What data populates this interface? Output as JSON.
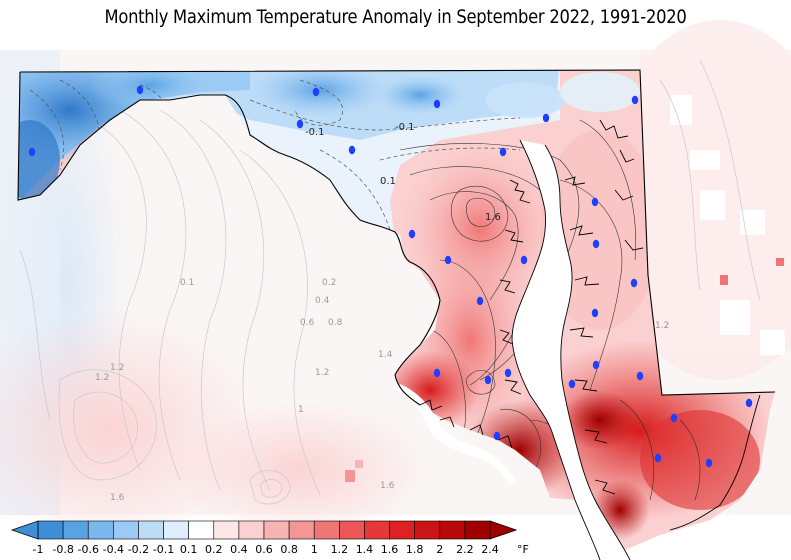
{
  "title": "Monthly Maximum Temperature Anomaly in September 2022, 1991-2020",
  "colorbar": {
    "unit": "°F",
    "ticks": [
      "-1",
      "-0.8",
      "-0.6",
      "-0.4",
      "-0.2",
      "-0.1",
      "0.1",
      "0.2",
      "0.4",
      "0.6",
      "0.8",
      "1",
      "1.2",
      "1.4",
      "1.6",
      "1.8",
      "2",
      "2.2",
      "2.4"
    ],
    "colors": [
      "#3f8fd6",
      "#5aa3e3",
      "#79b8ee",
      "#9bcaf4",
      "#bddcf8",
      "#ddedfb",
      "#ffffff",
      "#fde6e6",
      "#fbd0d0",
      "#f8b4b4",
      "#f59696",
      "#f07676",
      "#ec5656",
      "#e63838",
      "#de2222",
      "#cc1414",
      "#b80808",
      "#a00000"
    ],
    "end_colors": {
      "low": "#3f8fd6",
      "high": "#a00000"
    }
  },
  "contour_labels": [
    {
      "text": "-0.1",
      "kind": "dark"
    },
    {
      "text": "0.1",
      "kind": "dark"
    },
    {
      "text": "-0.1",
      "kind": "dark"
    },
    {
      "text": "1.6",
      "kind": "dark"
    },
    {
      "text": "0.1",
      "kind": "grey"
    },
    {
      "text": "0.2",
      "kind": "grey"
    },
    {
      "text": "0.4",
      "kind": "grey"
    },
    {
      "text": "0.6",
      "kind": "grey"
    },
    {
      "text": "0.8",
      "kind": "grey"
    },
    {
      "text": "1.4",
      "kind": "grey"
    },
    {
      "text": "1.2",
      "kind": "grey"
    },
    {
      "text": "1.2",
      "kind": "grey"
    },
    {
      "text": "1.2",
      "kind": "grey"
    },
    {
      "text": "1",
      "kind": "grey"
    },
    {
      "text": "1.6",
      "kind": "grey"
    },
    {
      "text": "1.6",
      "kind": "grey"
    },
    {
      "text": "1.2",
      "kind": "grey"
    }
  ],
  "station_color": "#1f3fff",
  "station_count": 28
}
